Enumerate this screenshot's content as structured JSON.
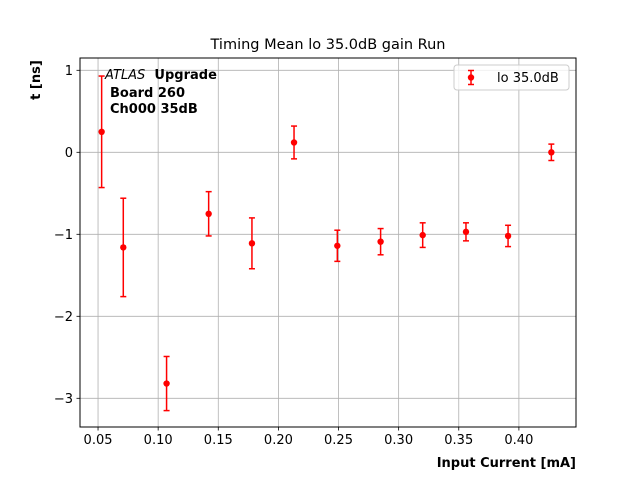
{
  "chart_data": {
    "type": "scatter",
    "title": "Timing Mean lo 35.0dB gain Run",
    "xlabel": "Input Current [mA]",
    "ylabel": "t [ns]",
    "xlim": [
      0.035,
      0.4475
    ],
    "ylim": [
      -3.35,
      1.15
    ],
    "xticks": [
      0.05,
      0.1,
      0.15,
      0.2,
      0.25,
      0.3,
      0.35,
      0.4
    ],
    "xtick_labels": [
      "0.05",
      "0.10",
      "0.15",
      "0.20",
      "0.25",
      "0.30",
      "0.35",
      "0.40"
    ],
    "yticks": [
      1,
      0,
      -1,
      -2,
      -3
    ],
    "ytick_labels": [
      "1",
      "0",
      "−1",
      "−2",
      "−3"
    ],
    "grid": true,
    "legend_position": "top-right",
    "series": [
      {
        "name": "lo 35.0dB",
        "color": "#ff0000",
        "marker": "circle",
        "points": [
          {
            "x": 0.053,
            "y": 0.25,
            "err": 0.68
          },
          {
            "x": 0.071,
            "y": -1.16,
            "err": 0.6
          },
          {
            "x": 0.107,
            "y": -2.82,
            "err": 0.33
          },
          {
            "x": 0.142,
            "y": -0.75,
            "err": 0.27
          },
          {
            "x": 0.178,
            "y": -1.11,
            "err": 0.31
          },
          {
            "x": 0.213,
            "y": 0.12,
            "err": 0.2
          },
          {
            "x": 0.249,
            "y": -1.14,
            "err": 0.19
          },
          {
            "x": 0.285,
            "y": -1.09,
            "err": 0.16
          },
          {
            "x": 0.32,
            "y": -1.01,
            "err": 0.15
          },
          {
            "x": 0.356,
            "y": -0.97,
            "err": 0.11
          },
          {
            "x": 0.391,
            "y": -1.02,
            "err": 0.13
          },
          {
            "x": 0.427,
            "y": 0.0,
            "err": 0.1
          }
        ]
      }
    ],
    "annotation": {
      "atlas_italic": "ATLAS",
      "atlas_bold": "Upgrade",
      "line2": "Board 260",
      "line3": "Ch000 35dB"
    }
  }
}
